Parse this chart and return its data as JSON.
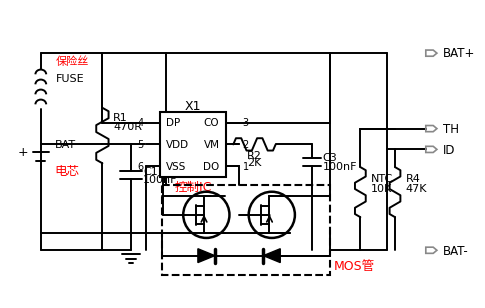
{
  "bg_color": "#ffffff",
  "lc": "#000000",
  "rc": "#ff0000",
  "labels": {
    "fuse_cn": "保险丝",
    "fuse_en": "FUSE",
    "r1": "R1",
    "r1_val": "470R",
    "bat": "BAT",
    "plus": "+",
    "elec_cn": "电芯",
    "c1": "C1",
    "c1_val": "100nF",
    "x1": "X1",
    "dp": "DP",
    "co": "CO",
    "vdd": "VDD",
    "vm": "VM",
    "vss": "VSS",
    "do": "DO",
    "p4": "4",
    "p3": "3",
    "p5": "5",
    "p2": "2",
    "p6": "6",
    "p1": "1",
    "ctrl": "控制IC",
    "r2": "R2",
    "r2v": "2K",
    "c3": "C3",
    "c3v": "100nF",
    "ntc": "NTC",
    "ntcv": "10K",
    "r4": "R4",
    "r4v": "47K",
    "mos": "MOS管",
    "batp": "BAT+",
    "batm": "BAT-",
    "th": "TH",
    "id": "ID"
  }
}
